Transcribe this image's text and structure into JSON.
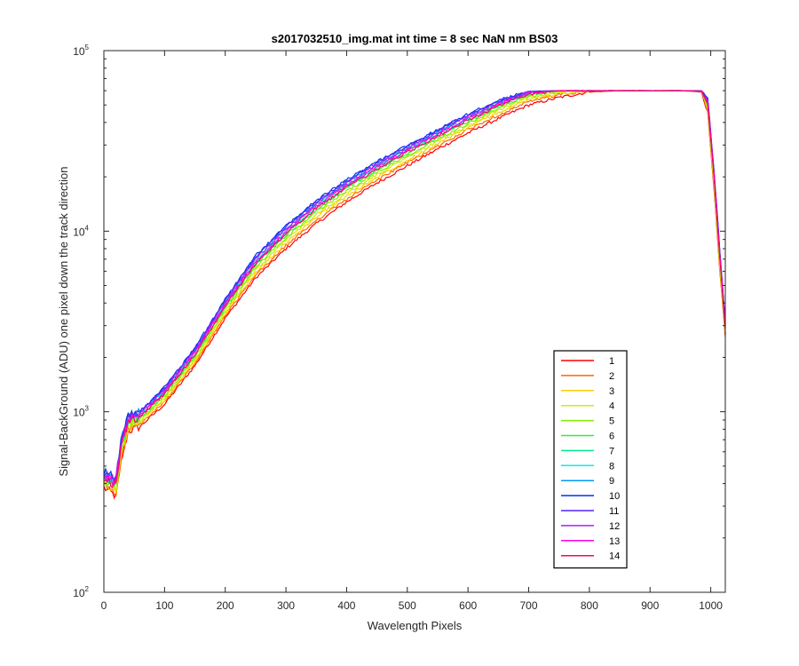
{
  "chart_data": {
    "type": "line",
    "title": "s2017032510_img.mat int time = 8 sec  NaN nm BS03",
    "xlabel": "Wavelength Pixels",
    "ylabel": "Signal-BackGround (ADU) one pixel down the track direction",
    "xlim": [
      0,
      1024
    ],
    "ylim": [
      100,
      100000
    ],
    "yscale": "log",
    "xticks": [
      "0",
      "100",
      "200",
      "300",
      "400",
      "500",
      "600",
      "700",
      "800",
      "900",
      "1000"
    ],
    "yticks": [
      {
        "base": "10",
        "exp": "2"
      },
      {
        "base": "10",
        "exp": "3"
      },
      {
        "base": "10",
        "exp": "4"
      },
      {
        "base": "10",
        "exp": "5"
      }
    ],
    "legend_position": "lower-right-inside",
    "grid": false,
    "x": [
      0,
      20,
      28,
      40,
      60,
      100,
      150,
      200,
      250,
      300,
      350,
      400,
      450,
      500,
      550,
      600,
      650,
      700,
      750,
      800,
      850,
      900,
      950,
      985,
      995,
      1005,
      1015,
      1024
    ],
    "series": [
      {
        "name": "1",
        "color": "#ff0000",
        "values": [
          380,
          340,
          520,
          780,
          830,
          1100,
          1800,
          3300,
          5500,
          8000,
          11000,
          14500,
          18500,
          23000,
          28500,
          35000,
          42000,
          50000,
          55000,
          59000,
          60000,
          60000,
          60000,
          59000,
          45000,
          18000,
          6000,
          2600
        ]
      },
      {
        "name": "2",
        "color": "#ff6600",
        "values": [
          390,
          350,
          540,
          800,
          850,
          1130,
          1850,
          3400,
          5700,
          8300,
          11500,
          15000,
          19200,
          24000,
          29500,
          36500,
          44000,
          52000,
          57000,
          59500,
          60000,
          60000,
          60000,
          59200,
          46000,
          18500,
          6200,
          2700
        ]
      },
      {
        "name": "3",
        "color": "#ffcc00",
        "values": [
          400,
          360,
          560,
          820,
          870,
          1160,
          1900,
          3500,
          5900,
          8600,
          12000,
          15600,
          19900,
          24800,
          30500,
          37500,
          45500,
          53500,
          58000,
          60000,
          60000,
          60000,
          60000,
          59400,
          47000,
          19000,
          6400,
          2750
        ]
      },
      {
        "name": "4",
        "color": "#ccee00",
        "values": [
          410,
          370,
          580,
          840,
          890,
          1190,
          1950,
          3600,
          6100,
          8900,
          12400,
          16200,
          20600,
          25600,
          31500,
          38500,
          47000,
          55000,
          59000,
          60000,
          60000,
          60000,
          60000,
          59500,
          48000,
          19500,
          6600,
          2800
        ]
      },
      {
        "name": "5",
        "color": "#88ee00",
        "values": [
          420,
          380,
          600,
          860,
          910,
          1220,
          2000,
          3700,
          6300,
          9200,
          12800,
          16700,
          21200,
          26300,
          32400,
          39500,
          48000,
          56000,
          59500,
          60000,
          60000,
          60000,
          60000,
          59600,
          49000,
          20000,
          6800,
          2850
        ]
      },
      {
        "name": "6",
        "color": "#33ee33",
        "values": [
          430,
          390,
          620,
          880,
          930,
          1250,
          2050,
          3800,
          6500,
          9500,
          13200,
          17200,
          21800,
          27000,
          33200,
          40500,
          49000,
          57000,
          59800,
          60000,
          60000,
          60000,
          60000,
          59700,
          50000,
          20500,
          7000,
          2900
        ]
      },
      {
        "name": "7",
        "color": "#00ee88",
        "values": [
          440,
          400,
          640,
          900,
          950,
          1280,
          2100,
          3900,
          6700,
          9800,
          13600,
          17700,
          22400,
          27700,
          34000,
          41500,
          50000,
          58000,
          60000,
          60000,
          60000,
          60000,
          60000,
          59800,
          51000,
          21000,
          7200,
          2950
        ]
      },
      {
        "name": "8",
        "color": "#00eeee",
        "values": [
          450,
          410,
          660,
          920,
          970,
          1310,
          2150,
          4000,
          6900,
          10100,
          14000,
          18200,
          23000,
          28400,
          34800,
          42500,
          51000,
          58500,
          60000,
          60000,
          60000,
          60000,
          60000,
          59800,
          52000,
          21500,
          7400,
          3000
        ]
      },
      {
        "name": "9",
        "color": "#0099ee",
        "values": [
          460,
          420,
          680,
          940,
          990,
          1340,
          2200,
          4100,
          7100,
          10400,
          14400,
          18700,
          23600,
          29100,
          35600,
          43500,
          52000,
          59000,
          60000,
          60000,
          60000,
          60000,
          60000,
          59900,
          53000,
          22000,
          7600,
          3050
        ]
      },
      {
        "name": "10",
        "color": "#0033ee",
        "values": [
          470,
          430,
          700,
          960,
          1010,
          1370,
          2250,
          4200,
          7300,
          10700,
          14800,
          19200,
          24200,
          29800,
          36400,
          44500,
          53000,
          59500,
          60000,
          60000,
          60000,
          60000,
          60000,
          59900,
          54000,
          22500,
          7800,
          3100
        ]
      },
      {
        "name": "11",
        "color": "#5522ff",
        "values": [
          460,
          420,
          690,
          950,
          1000,
          1350,
          2230,
          4150,
          7200,
          10550,
          14600,
          18950,
          23900,
          29450,
          36000,
          44000,
          52500,
          59200,
          60000,
          60000,
          60000,
          60000,
          60000,
          59800,
          53500,
          22200,
          7700,
          3080
        ]
      },
      {
        "name": "12",
        "color": "#aa22ee",
        "values": [
          450,
          410,
          670,
          930,
          980,
          1320,
          2180,
          4050,
          7000,
          10250,
          14200,
          18450,
          23300,
          28750,
          35200,
          43000,
          51500,
          58800,
          60000,
          60000,
          60000,
          60000,
          60000,
          59700,
          52500,
          21800,
          7500,
          3000
        ]
      },
      {
        "name": "13",
        "color": "#ff00ee",
        "values": [
          440,
          400,
          650,
          910,
          960,
          1290,
          2120,
          3950,
          6800,
          9950,
          13800,
          17950,
          22700,
          28050,
          34400,
          42000,
          50500,
          58200,
          60000,
          60000,
          60000,
          60000,
          60000,
          59600,
          51500,
          21300,
          7300,
          2950
        ]
      },
      {
        "name": "14",
        "color": "#ff0066",
        "values": [
          430,
          390,
          630,
          890,
          940,
          1260,
          2070,
          3850,
          6600,
          9650,
          13400,
          17450,
          22100,
          27350,
          33600,
          41000,
          49500,
          57500,
          60000,
          60000,
          60000,
          60000,
          60000,
          59500,
          50500,
          20800,
          7100,
          2900
        ]
      }
    ]
  }
}
